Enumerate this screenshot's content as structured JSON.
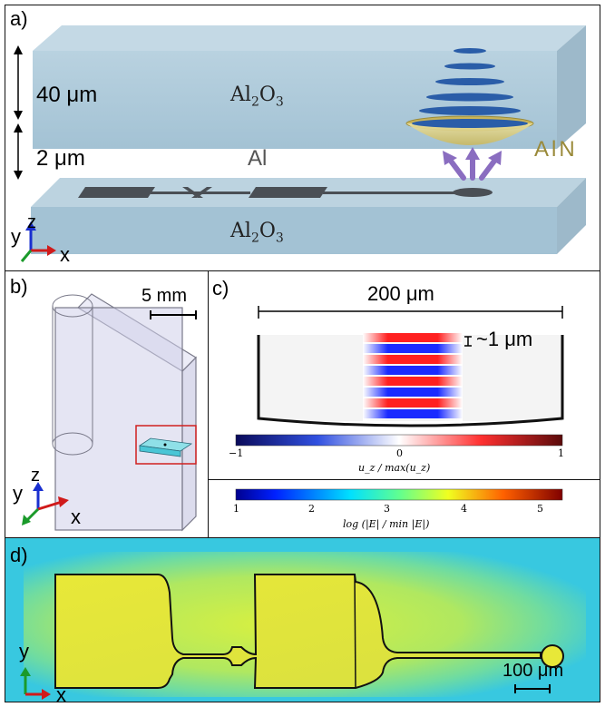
{
  "panel_a": {
    "label": "a)",
    "dim_top": "40 μm",
    "dim_bottom": "2 μm",
    "substrate_top": "Al",
    "substrate_top_sub": "2",
    "substrate_top_o": "O",
    "substrate_top_o_sub": "3",
    "metal": "Al",
    "resonator": "AlN",
    "substrate_bottom": "Al",
    "substrate_bottom_sub": "2",
    "substrate_bottom_o": "O",
    "substrate_bottom_o_sub": "3",
    "axis_y": "y",
    "axis_z": "z",
    "axis_x": "x"
  },
  "panel_b": {
    "label": "b)",
    "scale": "5 mm",
    "axis_y": "y",
    "axis_z": "z",
    "axis_x": "x"
  },
  "panel_c": {
    "label": "c)",
    "width_label": "200 μm",
    "wavelength_label": "~1 μm",
    "cbar1_ticks": [
      "−1",
      "0",
      "1"
    ],
    "cbar1_label": "u_z / max(u_z)",
    "cbar2_ticks": [
      "1",
      "2",
      "3",
      "4",
      "5"
    ],
    "cbar2_label": "log (|E| / min |E|)",
    "colors": {
      "neg": "#1a1aff",
      "pos": "#ff1a1a"
    }
  },
  "panel_d": {
    "label": "d)",
    "scale": "100 μm",
    "axis_y": "y",
    "axis_x": "x"
  }
}
